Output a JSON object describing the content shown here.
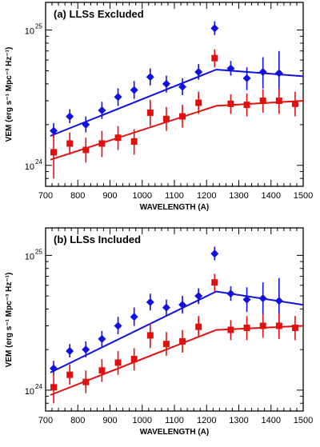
{
  "chart_data": [
    {
      "type": "scatter",
      "title": "(a) LLSs Excluded",
      "xlabel": "WAVELENGTH (A)",
      "ylabel": "VEM (erg s⁻¹ Mpc⁻³ Hz⁻¹)",
      "xlim": [
        700,
        1500
      ],
      "ylim": [
        7e+23,
        1.6e+25
      ],
      "yscale": "log",
      "xticks": [
        700,
        800,
        900,
        1000,
        1100,
        1200,
        1300,
        1400,
        1500
      ],
      "yticks": [
        {
          "value": 1e+24,
          "label": "10",
          "exp": "24"
        },
        {
          "value": 1e+25,
          "label": "10",
          "exp": "25"
        }
      ],
      "series": [
        {
          "color": "#1010e0",
          "marker": "diamond",
          "points": [
            {
              "x": 725,
              "y": 1.8e+24,
              "lo": 1.6e+24,
              "hi": 2.05e+24
            },
            {
              "x": 775,
              "y": 2.3e+24,
              "lo": 2.05e+24,
              "hi": 2.6e+24
            },
            {
              "x": 825,
              "y": 2e+24,
              "lo": 1.75e+24,
              "hi": 2.3e+24
            },
            {
              "x": 875,
              "y": 2.55e+24,
              "lo": 2.2e+24,
              "hi": 2.95e+24
            },
            {
              "x": 925,
              "y": 3.2e+24,
              "lo": 2.75e+24,
              "hi": 3.7e+24
            },
            {
              "x": 975,
              "y": 3.6e+24,
              "lo": 3.1e+24,
              "hi": 4.2e+24
            },
            {
              "x": 1025,
              "y": 4.5e+24,
              "lo": 3.9e+24,
              "hi": 5.2e+24
            },
            {
              "x": 1075,
              "y": 4e+24,
              "lo": 3.45e+24,
              "hi": 4.6e+24
            },
            {
              "x": 1125,
              "y": 3.8e+24,
              "lo": 3.3e+24,
              "hi": 4.4e+24
            },
            {
              "x": 1175,
              "y": 4.9e+24,
              "lo": 4.3e+24,
              "hi": 5.6e+24
            },
            {
              "x": 1225,
              "y": 1.03e+25,
              "lo": 9.2e+24,
              "hi": 1.16e+25
            },
            {
              "x": 1275,
              "y": 5.2e+24,
              "lo": 4.6e+24,
              "hi": 5.9e+24
            },
            {
              "x": 1325,
              "y": 4.4e+24,
              "lo": 3.6e+24,
              "hi": 5.3e+24
            },
            {
              "x": 1375,
              "y": 4.9e+24,
              "lo": 3.7e+24,
              "hi": 6.3e+24
            },
            {
              "x": 1425,
              "y": 4.8e+24,
              "lo": 3.3e+24,
              "hi": 7e+24
            }
          ],
          "model": [
            [
              715,
              1.65e+24
            ],
            [
              1230,
              5.1e+24
            ],
            [
              1500,
              4.55e+24
            ]
          ]
        },
        {
          "color": "#e01010",
          "marker": "square",
          "points": [
            {
              "x": 725,
              "y": 1.25e+24,
              "lo": 8e+23,
              "hi": 1.7e+24
            },
            {
              "x": 775,
              "y": 1.45e+24,
              "lo": 1.2e+24,
              "hi": 1.75e+24
            },
            {
              "x": 825,
              "y": 1.3e+24,
              "lo": 1.05e+24,
              "hi": 1.6e+24
            },
            {
              "x": 875,
              "y": 1.45e+24,
              "lo": 1.15e+24,
              "hi": 1.8e+24
            },
            {
              "x": 925,
              "y": 1.6e+24,
              "lo": 1.3e+24,
              "hi": 1.95e+24
            },
            {
              "x": 975,
              "y": 1.5e+24,
              "lo": 1.2e+24,
              "hi": 1.85e+24
            },
            {
              "x": 1025,
              "y": 2.45e+24,
              "lo": 1.95e+24,
              "hi": 3.05e+24
            },
            {
              "x": 1075,
              "y": 2.2e+24,
              "lo": 1.8e+24,
              "hi": 2.7e+24
            },
            {
              "x": 1125,
              "y": 2.3e+24,
              "lo": 1.9e+24,
              "hi": 2.8e+24
            },
            {
              "x": 1175,
              "y": 2.9e+24,
              "lo": 2.4e+24,
              "hi": 3.5e+24
            },
            {
              "x": 1225,
              "y": 6.2e+24,
              "lo": 5.3e+24,
              "hi": 7.2e+24
            },
            {
              "x": 1275,
              "y": 2.85e+24,
              "lo": 2.4e+24,
              "hi": 3.35e+24
            },
            {
              "x": 1325,
              "y": 2.8e+24,
              "lo": 2.3e+24,
              "hi": 3.4e+24
            },
            {
              "x": 1375,
              "y": 3e+24,
              "lo": 2.45e+24,
              "hi": 3.65e+24
            },
            {
              "x": 1425,
              "y": 3e+24,
              "lo": 2.4e+24,
              "hi": 3.7e+24
            },
            {
              "x": 1475,
              "y": 2.85e+24,
              "lo": 2.3e+24,
              "hi": 3.5e+24
            }
          ],
          "model": [
            [
              715,
              1.1e+24
            ],
            [
              1230,
              2.75e+24
            ],
            [
              1500,
              3e+24
            ]
          ]
        }
      ]
    },
    {
      "type": "scatter",
      "title": "(b) LLSs Included",
      "xlabel": "WAVELENGTH (A)",
      "ylabel": "VEM (erg s⁻¹ Mpc⁻³ Hz⁻¹)",
      "xlim": [
        700,
        1500
      ],
      "ylim": [
        7e+23,
        1.6e+25
      ],
      "yscale": "log",
      "xticks": [
        700,
        800,
        900,
        1000,
        1100,
        1200,
        1300,
        1400,
        1500
      ],
      "yticks": [
        {
          "value": 1e+24,
          "label": "10",
          "exp": "24"
        },
        {
          "value": 1e+25,
          "label": "10",
          "exp": "25"
        }
      ],
      "series": [
        {
          "color": "#1010e0",
          "marker": "diamond",
          "points": [
            {
              "x": 725,
              "y": 1.45e+24,
              "lo": 1.3e+24,
              "hi": 1.65e+24
            },
            {
              "x": 775,
              "y": 1.95e+24,
              "lo": 1.75e+24,
              "hi": 2.2e+24
            },
            {
              "x": 825,
              "y": 2e+24,
              "lo": 1.75e+24,
              "hi": 2.3e+24
            },
            {
              "x": 875,
              "y": 2.4e+24,
              "lo": 2.1e+24,
              "hi": 2.75e+24
            },
            {
              "x": 925,
              "y": 3e+24,
              "lo": 2.6e+24,
              "hi": 3.5e+24
            },
            {
              "x": 975,
              "y": 3.5e+24,
              "lo": 3e+24,
              "hi": 4.1e+24
            },
            {
              "x": 1025,
              "y": 4.5e+24,
              "lo": 3.9e+24,
              "hi": 5.2e+24
            },
            {
              "x": 1075,
              "y": 4.1e+24,
              "lo": 3.55e+24,
              "hi": 4.7e+24
            },
            {
              "x": 1125,
              "y": 4.3e+24,
              "lo": 3.7e+24,
              "hi": 5e+24
            },
            {
              "x": 1175,
              "y": 5e+24,
              "lo": 4.35e+24,
              "hi": 5.7e+24
            },
            {
              "x": 1225,
              "y": 1.03e+25,
              "lo": 9.2e+24,
              "hi": 1.16e+25
            },
            {
              "x": 1275,
              "y": 5.2e+24,
              "lo": 4.6e+24,
              "hi": 5.9e+24
            },
            {
              "x": 1325,
              "y": 4.7e+24,
              "lo": 3.8e+24,
              "hi": 5.8e+24
            },
            {
              "x": 1375,
              "y": 4.8e+24,
              "lo": 3.6e+24,
              "hi": 6.3e+24
            },
            {
              "x": 1425,
              "y": 4.6e+24,
              "lo": 3.1e+24,
              "hi": 6.8e+24
            }
          ],
          "model": [
            [
              715,
              1.35e+24
            ],
            [
              1230,
              5.4e+24
            ],
            [
              1500,
              4.3e+24
            ]
          ]
        },
        {
          "color": "#e01010",
          "marker": "square",
          "points": [
            {
              "x": 725,
              "y": 1.05e+24,
              "lo": 8e+23,
              "hi": 1.35e+24
            },
            {
              "x": 775,
              "y": 1.3e+24,
              "lo": 1.1e+24,
              "hi": 1.55e+24
            },
            {
              "x": 825,
              "y": 1.15e+24,
              "lo": 9.5e+23,
              "hi": 1.4e+24
            },
            {
              "x": 875,
              "y": 1.4e+24,
              "lo": 1.15e+24,
              "hi": 1.7e+24
            },
            {
              "x": 925,
              "y": 1.6e+24,
              "lo": 1.3e+24,
              "hi": 1.95e+24
            },
            {
              "x": 975,
              "y": 1.7e+24,
              "lo": 1.4e+24,
              "hi": 2.05e+24
            },
            {
              "x": 1025,
              "y": 2.55e+24,
              "lo": 2.05e+24,
              "hi": 3.15e+24
            },
            {
              "x": 1075,
              "y": 2.2e+24,
              "lo": 1.8e+24,
              "hi": 2.7e+24
            },
            {
              "x": 1125,
              "y": 2.3e+24,
              "lo": 1.9e+24,
              "hi": 2.8e+24
            },
            {
              "x": 1175,
              "y": 2.95e+24,
              "lo": 2.45e+24,
              "hi": 3.55e+24
            },
            {
              "x": 1225,
              "y": 6.3e+24,
              "lo": 5.4e+24,
              "hi": 7.3e+24
            },
            {
              "x": 1275,
              "y": 2.8e+24,
              "lo": 2.35e+24,
              "hi": 3.3e+24
            },
            {
              "x": 1325,
              "y": 2.9e+24,
              "lo": 2.35e+24,
              "hi": 3.55e+24
            },
            {
              "x": 1375,
              "y": 3e+24,
              "lo": 2.45e+24,
              "hi": 3.65e+24
            },
            {
              "x": 1425,
              "y": 3e+24,
              "lo": 2.4e+24,
              "hi": 3.7e+24
            },
            {
              "x": 1475,
              "y": 2.9e+24,
              "lo": 2.35e+24,
              "hi": 3.55e+24
            }
          ],
          "model": [
            [
              715,
              9.2e+23
            ],
            [
              1230,
              2.8e+24
            ],
            [
              1500,
              3e+24
            ]
          ]
        }
      ]
    }
  ]
}
